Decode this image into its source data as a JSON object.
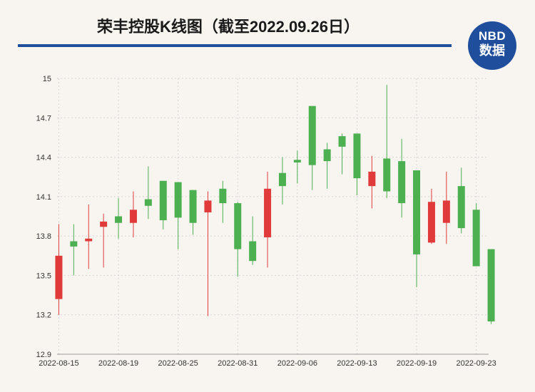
{
  "title": "荣丰控股K线图（截至2022.09.26日）",
  "logo": {
    "line1": "NBD",
    "line2": "数据"
  },
  "colors": {
    "up": "#e03a3a",
    "down": "#4caf50",
    "grid": "#d5d5d5",
    "brand": "#1f4e9c"
  },
  "chart_data": {
    "type": "candlestick",
    "title": "荣丰控股K线图（截至2022.09.26日）",
    "ylim": [
      12.9,
      15
    ],
    "yticks": [
      "12.9",
      "13.2",
      "13.5",
      "13.8",
      "14.1",
      "14.4",
      "14.7",
      "15"
    ],
    "xticks": [
      {
        "label": "2022-08-15",
        "index": 0
      },
      {
        "label": "2022-08-19",
        "index": 4
      },
      {
        "label": "2022-08-25",
        "index": 8
      },
      {
        "label": "2022-08-31",
        "index": 12
      },
      {
        "label": "2022-09-06",
        "index": 16
      },
      {
        "label": "2022-09-13",
        "index": 20
      },
      {
        "label": "2022-09-19",
        "index": 24
      },
      {
        "label": "2022-09-23",
        "index": 28
      }
    ],
    "candles": [
      {
        "o": 13.32,
        "c": 13.65,
        "h": 13.89,
        "l": 13.2
      },
      {
        "o": 13.76,
        "c": 13.72,
        "h": 13.89,
        "l": 13.5
      },
      {
        "o": 13.76,
        "c": 13.78,
        "h": 14.04,
        "l": 13.55
      },
      {
        "o": 13.87,
        "c": 13.91,
        "h": 13.97,
        "l": 13.56
      },
      {
        "o": 13.95,
        "c": 13.9,
        "h": 14.09,
        "l": 13.78
      },
      {
        "o": 13.9,
        "c": 14.0,
        "h": 14.14,
        "l": 13.79
      },
      {
        "o": 14.08,
        "c": 14.03,
        "h": 14.33,
        "l": 13.93
      },
      {
        "o": 14.22,
        "c": 13.92,
        "h": 14.22,
        "l": 13.85
      },
      {
        "o": 14.21,
        "c": 13.94,
        "h": 14.21,
        "l": 13.7
      },
      {
        "o": 14.15,
        "c": 13.9,
        "h": 14.15,
        "l": 13.81
      },
      {
        "o": 13.98,
        "c": 14.07,
        "h": 14.14,
        "l": 13.19
      },
      {
        "o": 14.16,
        "c": 14.05,
        "h": 14.22,
        "l": 13.9
      },
      {
        "o": 14.05,
        "c": 13.7,
        "h": 14.06,
        "l": 13.49
      },
      {
        "o": 13.76,
        "c": 13.61,
        "h": 13.95,
        "l": 13.58
      },
      {
        "o": 13.79,
        "c": 14.16,
        "h": 14.29,
        "l": 13.56
      },
      {
        "o": 14.28,
        "c": 14.18,
        "h": 14.4,
        "l": 14.04
      },
      {
        "o": 14.38,
        "c": 14.36,
        "h": 14.45,
        "l": 14.2
      },
      {
        "o": 14.79,
        "c": 14.34,
        "h": 14.79,
        "l": 14.15
      },
      {
        "o": 14.46,
        "c": 14.37,
        "h": 14.51,
        "l": 14.16
      },
      {
        "o": 14.56,
        "c": 14.48,
        "h": 14.58,
        "l": 14.27
      },
      {
        "o": 14.58,
        "c": 14.24,
        "h": 14.58,
        "l": 14.11
      },
      {
        "o": 14.18,
        "c": 14.29,
        "h": 14.41,
        "l": 14.01
      },
      {
        "o": 14.39,
        "c": 14.14,
        "h": 14.95,
        "l": 14.09
      },
      {
        "o": 14.37,
        "c": 14.05,
        "h": 14.54,
        "l": 13.94
      },
      {
        "o": 14.3,
        "c": 13.66,
        "h": 14.3,
        "l": 13.41
      },
      {
        "o": 13.75,
        "c": 14.06,
        "h": 14.16,
        "l": 13.74
      },
      {
        "o": 13.9,
        "c": 14.07,
        "h": 14.29,
        "l": 13.74
      },
      {
        "o": 14.18,
        "c": 13.86,
        "h": 14.32,
        "l": 13.82
      },
      {
        "o": 14.0,
        "c": 13.57,
        "h": 14.05,
        "l": 13.57
      },
      {
        "o": 13.7,
        "c": 13.15,
        "h": 13.7,
        "l": 13.13
      }
    ]
  }
}
